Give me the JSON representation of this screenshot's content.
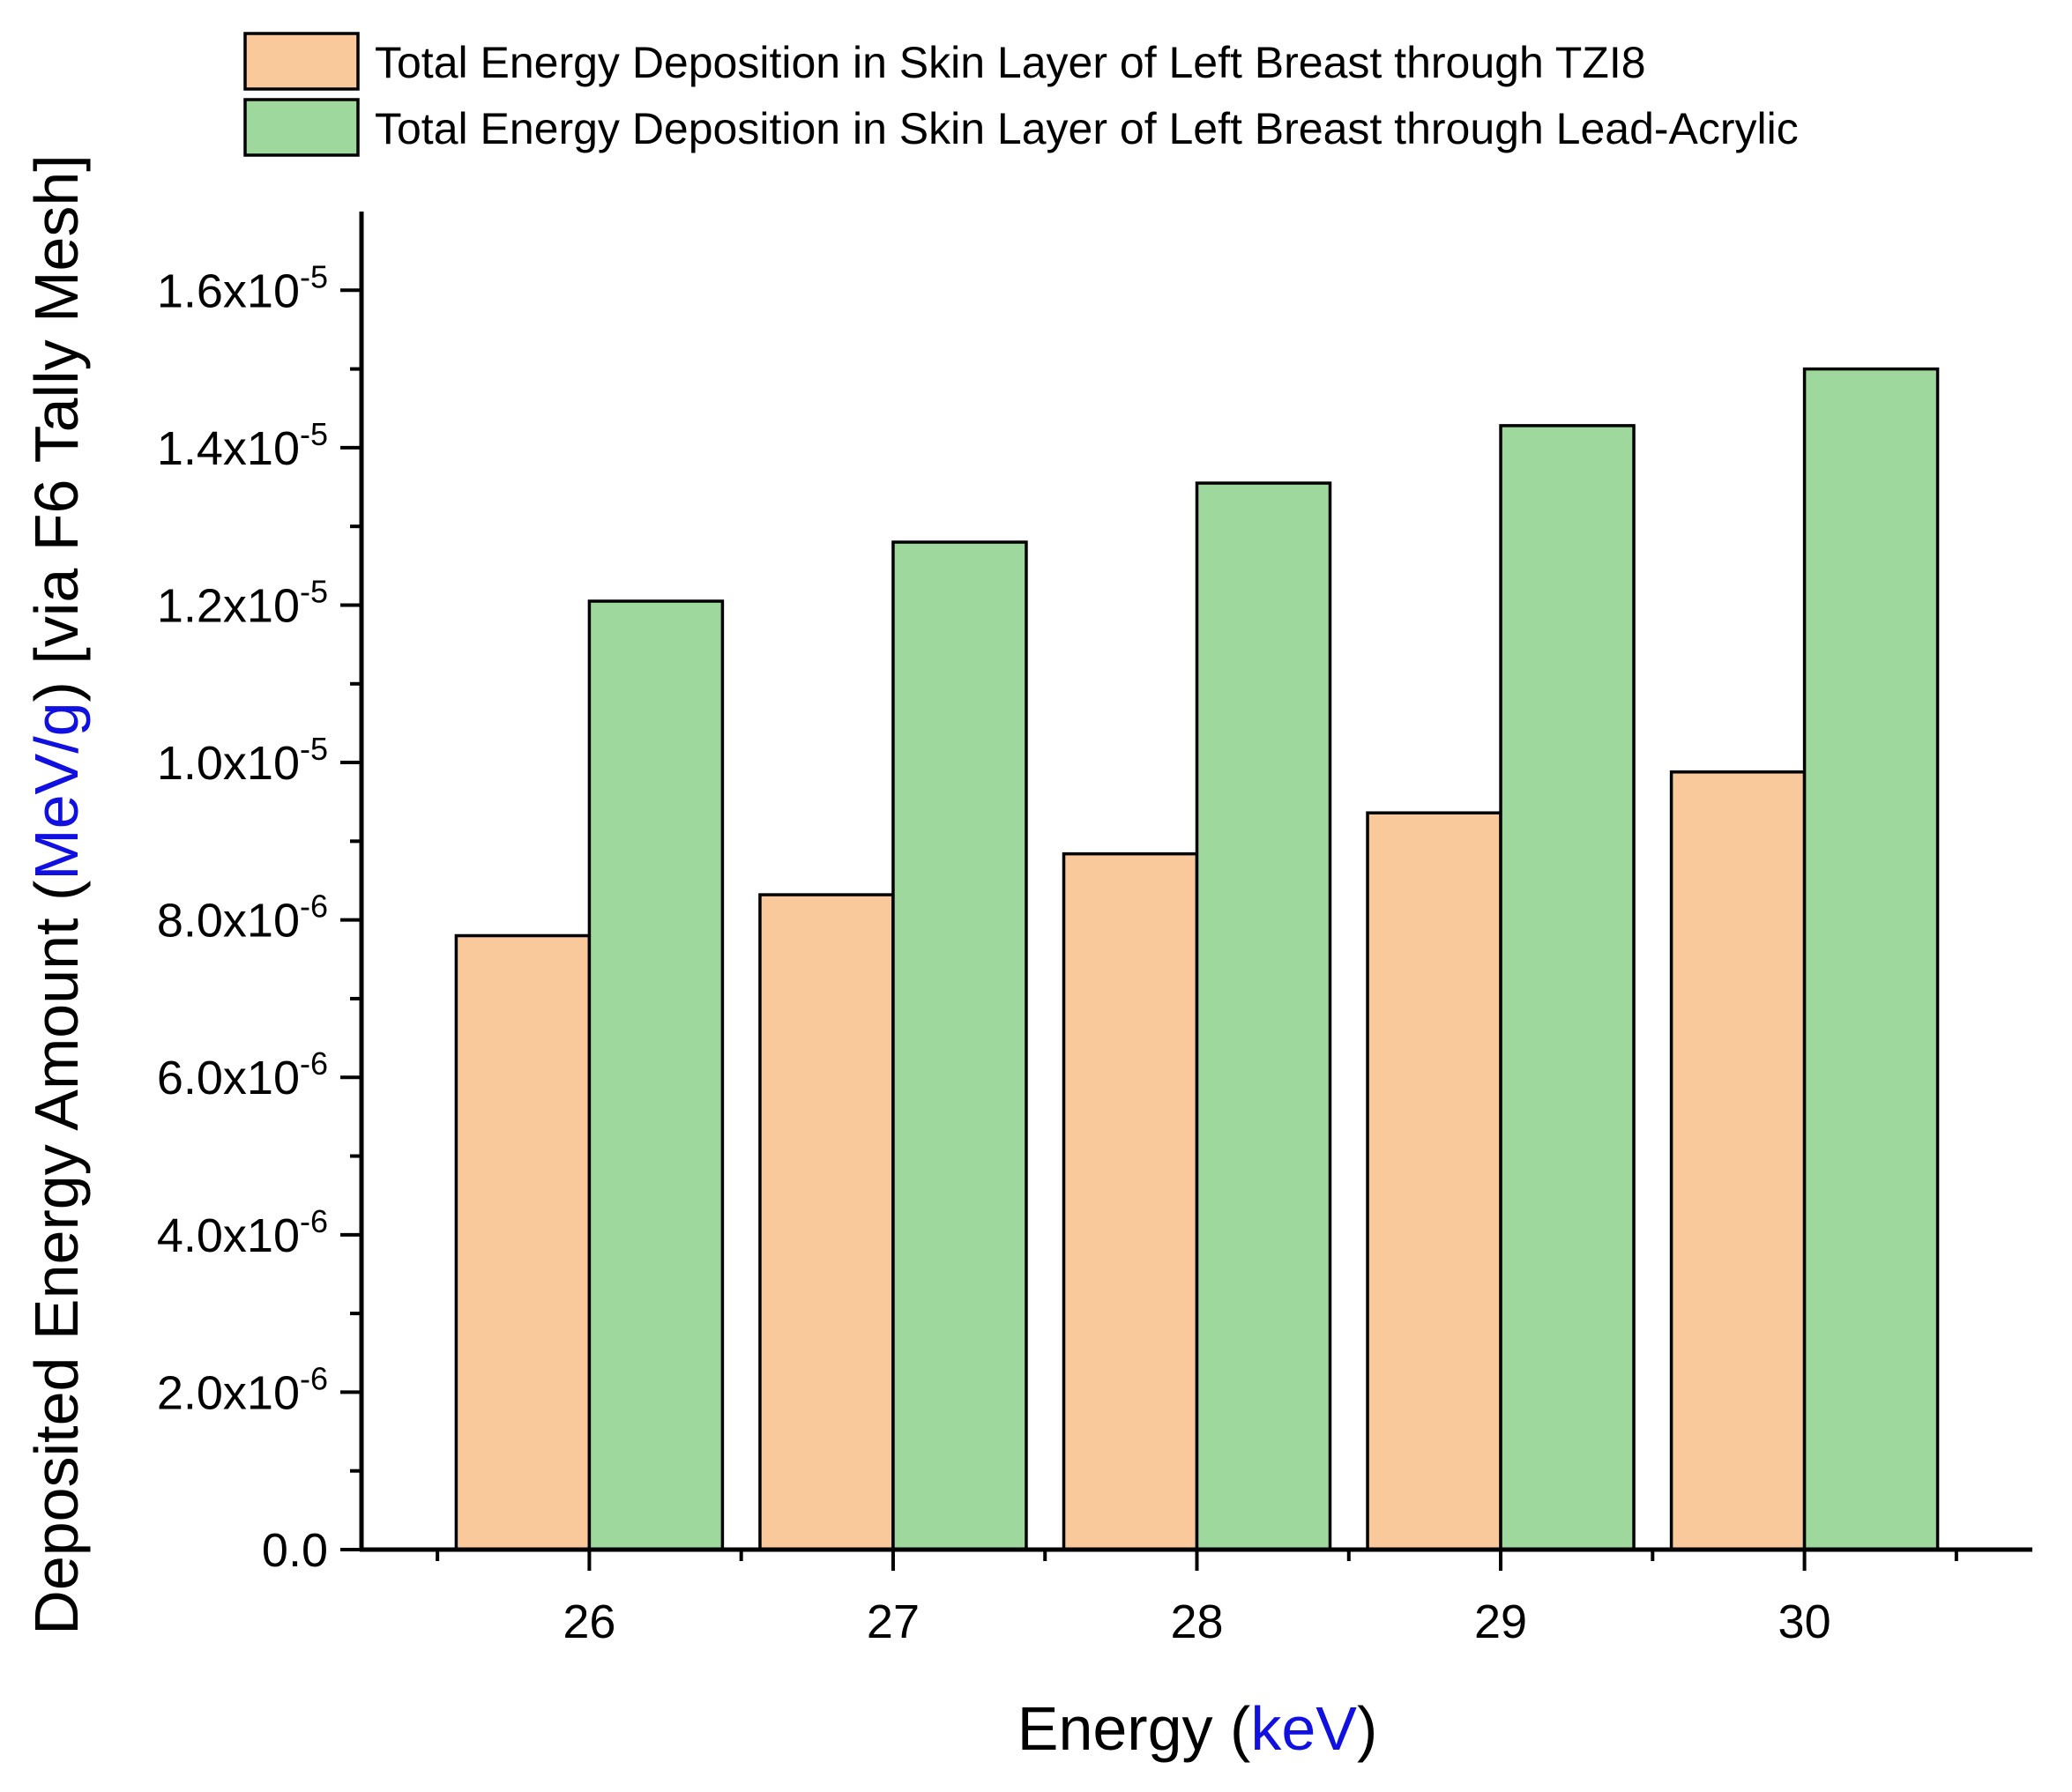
{
  "chart_data": {
    "type": "bar",
    "categories": [
      "26",
      "27",
      "28",
      "29",
      "30"
    ],
    "series": [
      {
        "name": "Total Energy Deposition in Skin Layer of Left Breast through TZI8",
        "color": "#F9C89B",
        "values": [
          7.8e-06,
          8.32e-06,
          8.84e-06,
          9.36e-06,
          9.88e-06
        ]
      },
      {
        "name": "Total Energy Deposition in Skin Layer of Left Breast through Lead-Acrylic",
        "color": "#9FD89C",
        "values": [
          1.205e-05,
          1.28e-05,
          1.355e-05,
          1.428e-05,
          1.5e-05
        ]
      }
    ],
    "xlabel": {
      "prefix": "Energy (",
      "unit": "keV",
      "suffix": ")"
    },
    "ylabel": {
      "prefix": "Deposited Energy Amount (",
      "unit": "MeV/g",
      "suffix": ") [via F6 Tally Mesh]"
    },
    "unit_color": "#1010E0",
    "ylim": [
      0,
      1.7e-05
    ],
    "yticks": [
      {
        "value": 0,
        "mantissa": "0.0",
        "exp": ""
      },
      {
        "value": 2e-06,
        "mantissa": "2.0x10",
        "exp": "-6"
      },
      {
        "value": 4e-06,
        "mantissa": "4.0x10",
        "exp": "-6"
      },
      {
        "value": 6e-06,
        "mantissa": "6.0x10",
        "exp": "-6"
      },
      {
        "value": 8e-06,
        "mantissa": "8.0x10",
        "exp": "-6"
      },
      {
        "value": 1e-05,
        "mantissa": "1.0x10",
        "exp": "-5"
      },
      {
        "value": 1.2e-05,
        "mantissa": "1.2x10",
        "exp": "-5"
      },
      {
        "value": 1.4e-05,
        "mantissa": "1.4x10",
        "exp": "-5"
      },
      {
        "value": 1.6e-05,
        "mantissa": "1.6x10",
        "exp": "-5"
      }
    ],
    "legend_position": "top",
    "grid": false
  }
}
